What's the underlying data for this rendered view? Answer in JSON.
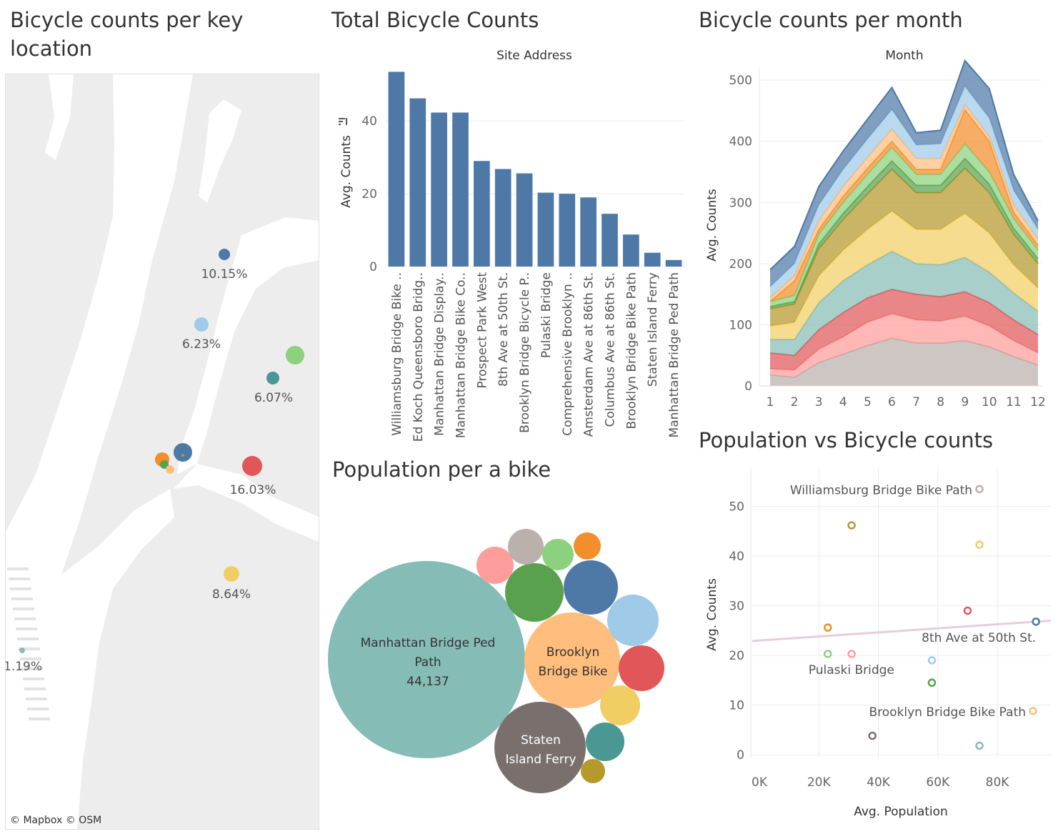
{
  "titles": {
    "map": "Bicycle counts per key location",
    "bar": "Total Bicycle Counts",
    "area": "Bicycle counts per month",
    "bubble": "Population per a bike",
    "scatter": "Population vs Bicycle counts"
  },
  "map": {
    "attribution": "© Mapbox  © OSM",
    "land_color": "#ededed",
    "water_color": "#ffffff",
    "markers": [
      {
        "label": "10.15%",
        "color": "#4e79a7"
      },
      {
        "label": "6.23%",
        "color": "#a0cbe8"
      },
      {
        "label": "",
        "color": "#8cd17d"
      },
      {
        "label": "6.07%",
        "color": "#499894"
      },
      {
        "label": "",
        "color": "#4e79a7"
      },
      {
        "label": "",
        "color": "#f28e2b"
      },
      {
        "label": "",
        "color": "#59a14f"
      },
      {
        "label": "",
        "color": "#ffbe7d"
      },
      {
        "label": "16.03%",
        "color": "#e15759"
      },
      {
        "label": "8.64%",
        "color": "#f1ce63"
      },
      {
        "label": "1.19%",
        "color": "#86bcb6"
      }
    ]
  },
  "chart_data": [
    {
      "id": "bar",
      "type": "bar",
      "title": "Total Bicycle Counts",
      "xlabel": "Site Address",
      "ylabel": "Avg. Counts",
      "ylim": [
        0,
        53
      ],
      "yticks": [
        0,
        20,
        40
      ],
      "bar_color": "#4e79a7",
      "categories": [
        "Williamsburg Bridge Bike ..",
        "Ed Koch Queensboro Bridg..",
        "Manhattan Bridge Display..",
        "Manhattan Bridge Bike Co..",
        "Prospect Park West",
        "8th Ave at 50th St.",
        "Brooklyn Bridge Bicycle P..",
        "Pulaski Bridge",
        "Comprehensive Brooklyn ..",
        "Amsterdam Ave at 86th St.",
        "Columbus Ave at 86th St.",
        "Brooklyn Bridge Bike Path",
        "Staten Island Ferry",
        "Manhattan Bridge Ped Path"
      ],
      "values": [
        53.5,
        46.2,
        42.3,
        42.3,
        29.0,
        26.8,
        25.6,
        20.3,
        20.0,
        19.0,
        14.5,
        8.8,
        3.8,
        1.8
      ]
    },
    {
      "id": "area",
      "type": "area",
      "title": "Bicycle counts per month",
      "xlabel": "Month",
      "ylabel": "Avg. Counts",
      "ylim": [
        0,
        520
      ],
      "yticks": [
        0,
        100,
        200,
        300,
        400,
        500
      ],
      "x": [
        1,
        2,
        3,
        4,
        5,
        6,
        7,
        8,
        9,
        10,
        11,
        12
      ],
      "stacked": true,
      "series": [
        {
          "color": "#bab0ac",
          "values": [
            18,
            14,
            38,
            52,
            66,
            78,
            70,
            70,
            74,
            64,
            48,
            34
          ]
        },
        {
          "color": "#ff9d9a",
          "values": [
            10,
            12,
            22,
            28,
            38,
            40,
            38,
            36,
            40,
            34,
            26,
            20
          ]
        },
        {
          "color": "#e15759",
          "values": [
            26,
            24,
            32,
            40,
            40,
            40,
            42,
            40,
            40,
            38,
            34,
            30
          ]
        },
        {
          "color": "#86bcb6",
          "values": [
            22,
            26,
            44,
            52,
            54,
            62,
            50,
            52,
            56,
            50,
            44,
            38
          ]
        },
        {
          "color": "#f1ce63",
          "values": [
            22,
            28,
            44,
            50,
            58,
            66,
            56,
            58,
            72,
            64,
            46,
            38
          ]
        },
        {
          "color": "#b6992d",
          "values": [
            28,
            30,
            44,
            50,
            58,
            68,
            60,
            60,
            74,
            66,
            50,
            40
          ]
        },
        {
          "color": "#59a14f",
          "values": [
            4,
            4,
            8,
            10,
            12,
            14,
            12,
            12,
            16,
            14,
            10,
            8
          ]
        },
        {
          "color": "#8cd17d",
          "values": [
            8,
            10,
            16,
            18,
            20,
            22,
            18,
            18,
            24,
            20,
            16,
            14
          ]
        },
        {
          "color": "#f28e2b",
          "values": [
            0,
            24,
            8,
            10,
            10,
            10,
            8,
            8,
            56,
            50,
            10,
            8
          ]
        },
        {
          "color": "#ffbe7d",
          "values": [
            6,
            8,
            14,
            16,
            18,
            20,
            18,
            18,
            8,
            8,
            12,
            10
          ]
        },
        {
          "color": "#a0cbe8",
          "values": [
            18,
            20,
            26,
            28,
            30,
            32,
            22,
            24,
            30,
            30,
            24,
            16
          ]
        },
        {
          "color": "#4e79a7",
          "values": [
            28,
            28,
            30,
            30,
            32,
            36,
            20,
            22,
            42,
            48,
            26,
            14
          ]
        }
      ]
    },
    {
      "id": "bubble",
      "type": "bubble",
      "title": "Population per a bike",
      "bubbles": [
        {
          "label": "Manhattan Bridge Ped Path",
          "value": "44,137",
          "color": "#86bcb6"
        },
        {
          "label": "Brooklyn Bridge Bike",
          "value": "",
          "color": "#ffbe7d"
        },
        {
          "label": "Staten Island Ferry",
          "value": "",
          "color": "#79706e"
        },
        {
          "label": "",
          "value": "",
          "color": "#59a14f"
        },
        {
          "label": "",
          "value": "",
          "color": "#4e79a7"
        },
        {
          "label": "",
          "value": "",
          "color": "#a0cbe8"
        },
        {
          "label": "",
          "value": "",
          "color": "#e15759"
        },
        {
          "label": "",
          "value": "",
          "color": "#f1ce63"
        },
        {
          "label": "",
          "value": "",
          "color": "#499894"
        },
        {
          "label": "",
          "value": "",
          "color": "#b6992d"
        },
        {
          "label": "",
          "value": "",
          "color": "#ff9d9a"
        },
        {
          "label": "",
          "value": "",
          "color": "#bab0ac"
        },
        {
          "label": "",
          "value": "",
          "color": "#8cd17d"
        },
        {
          "label": "",
          "value": "",
          "color": "#f28e2b"
        }
      ]
    },
    {
      "id": "scatter",
      "type": "scatter",
      "title": "Population vs Bicycle counts",
      "xlabel": "Avg. Population",
      "ylabel": "Avg. Counts",
      "xlim": [
        0,
        98000
      ],
      "ylim": [
        0,
        56
      ],
      "xticks": [
        0,
        20000,
        40000,
        60000,
        80000
      ],
      "xtick_labels": [
        "0K",
        "20K",
        "40K",
        "60K",
        "80K"
      ],
      "yticks": [
        0,
        10,
        20,
        30,
        40,
        50
      ],
      "trend": {
        "x": [
          0,
          98000
        ],
        "y": [
          22.9,
          27.0
        ],
        "color": "#e3cfdc"
      },
      "points": [
        {
          "x": 74000,
          "y": 53.5,
          "color": "#bab0ac",
          "label": "Williamsburg Bridge Bike Path"
        },
        {
          "x": 31000,
          "y": 46.2,
          "color": "#b6992d",
          "label": ""
        },
        {
          "x": 74000,
          "y": 42.3,
          "color": "#f1ce63",
          "label": ""
        },
        {
          "x": 70000,
          "y": 29.0,
          "color": "#e15759",
          "label": ""
        },
        {
          "x": 93000,
          "y": 26.8,
          "color": "#4e79a7",
          "label": "8th Ave at 50th St."
        },
        {
          "x": 23000,
          "y": 25.6,
          "color": "#f28e2b",
          "label": ""
        },
        {
          "x": 23000,
          "y": 20.3,
          "color": "#8cd17d",
          "label": "Pulaski Bridge"
        },
        {
          "x": 31000,
          "y": 20.3,
          "color": "#ff9d9a",
          "label": ""
        },
        {
          "x": 58000,
          "y": 19.0,
          "color": "#a0cbe8",
          "label": ""
        },
        {
          "x": 58000,
          "y": 14.5,
          "color": "#59a14f",
          "label": ""
        },
        {
          "x": 92000,
          "y": 8.8,
          "color": "#ffbe7d",
          "label": "Brooklyn Bridge Bike Path"
        },
        {
          "x": 38000,
          "y": 3.8,
          "color": "#79706e",
          "label": ""
        },
        {
          "x": 74000,
          "y": 1.8,
          "color": "#86bcb6",
          "label": ""
        }
      ]
    }
  ]
}
